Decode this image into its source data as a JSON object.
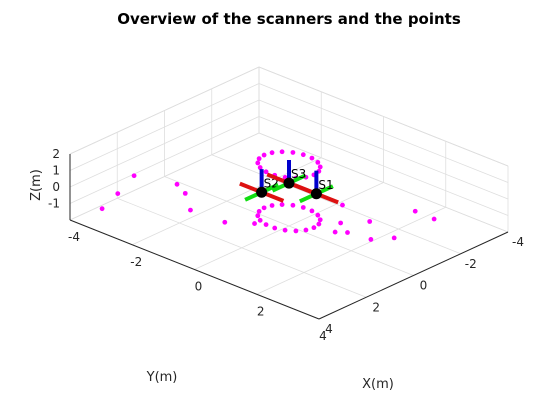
{
  "chart_data": {
    "type": "scatter",
    "title": "Overview of the scanners and the points",
    "xlabel": "X(m)",
    "ylabel": "Y(m)",
    "zlabel": "Z(m)",
    "xlim": [
      -4,
      4
    ],
    "ylim": [
      -4,
      4
    ],
    "zlim": [
      -2,
      2
    ],
    "xticks": [
      "-4",
      "-2",
      "0",
      "2",
      "4"
    ],
    "yticks": [
      "-4",
      "-2",
      "0",
      "2",
      "4"
    ],
    "zticks": [
      "-1",
      "0",
      "1",
      "2"
    ],
    "grid": true,
    "point_color": "#ff00ff",
    "points": [
      [
        -3.5,
        3.3,
        -1.4
      ],
      [
        -3.3,
        2.9,
        -0.6
      ],
      [
        -2.7,
        3.0,
        1.0
      ],
      [
        -1.7,
        2.5,
        0.9
      ],
      [
        -0.6,
        3.6,
        1.9
      ],
      [
        3.0,
        2.0,
        1.2
      ],
      [
        3.2,
        0.8,
        1.2
      ],
      [
        3.6,
        -0.6,
        1.2
      ],
      [
        3.6,
        -1.4,
        0.2
      ],
      [
        3.0,
        -0.5,
        -0.8
      ],
      [
        2.1,
        -0.7,
        -1.7
      ],
      [
        1.5,
        -0.5,
        -1.6
      ],
      [
        -1.8,
        1.8,
        -1.2
      ],
      [
        -1.0,
        1.4,
        -1.6
      ],
      [
        -0.5,
        0.8,
        -1.7
      ],
      [
        0.9,
        -1.0,
        -1.8
      ],
      [
        0.2,
        -2.0,
        -1.9
      ]
    ],
    "rings": [
      {
        "center": [
          0,
          0,
          1.7
        ],
        "radius": 0.8,
        "count": 18
      },
      {
        "center": [
          0,
          0,
          -1.5
        ],
        "radius": 0.8,
        "count": 18
      }
    ],
    "scanner_axis_colors": {
      "x": "#dd1111",
      "y": "#11dd11",
      "z": "#0000cc"
    },
    "scanners": [
      {
        "label": "S1",
        "position": [
          0.5,
          -0.5,
          0
        ]
      },
      {
        "label": "S2",
        "position": [
          -0.5,
          0.5,
          0
        ]
      },
      {
        "label": "S3",
        "position": [
          0,
          0,
          0.6
        ]
      }
    ]
  }
}
